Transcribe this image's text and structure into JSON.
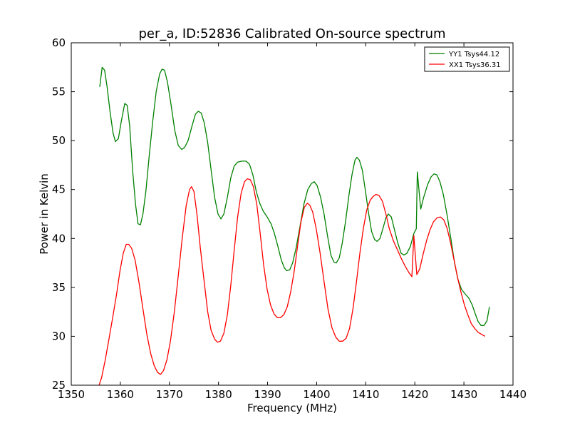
{
  "chart_data": {
    "type": "line",
    "title": "per_a, ID:52836 Calibrated On-source spectrum",
    "xlabel": "Frequency (MHz)",
    "ylabel": "Power in Kelvin",
    "xlim": [
      1350,
      1440
    ],
    "ylim": [
      25,
      60
    ],
    "xticks": [
      "1350",
      "1360",
      "1370",
      "1380",
      "1390",
      "1400",
      "1410",
      "1420",
      "1430",
      "1440"
    ],
    "yticks": [
      "25",
      "30",
      "35",
      "40",
      "45",
      "50",
      "55",
      "60"
    ],
    "grid": false,
    "legend_position": "top-right",
    "series": [
      {
        "name": "YY1 Tsys44.12",
        "color": "#008000",
        "points": [
          [
            1355.8,
            55.5
          ],
          [
            1356.3,
            57.5
          ],
          [
            1356.8,
            57.2
          ],
          [
            1357.3,
            55.5
          ],
          [
            1357.9,
            53.0
          ],
          [
            1358.5,
            50.8
          ],
          [
            1359.0,
            49.9
          ],
          [
            1359.6,
            50.2
          ],
          [
            1360.2,
            52.0
          ],
          [
            1360.9,
            53.8
          ],
          [
            1361.4,
            53.6
          ],
          [
            1361.9,
            51.5
          ],
          [
            1362.5,
            47.0
          ],
          [
            1363.1,
            43.5
          ],
          [
            1363.6,
            41.5
          ],
          [
            1364.1,
            41.4
          ],
          [
            1364.6,
            42.5
          ],
          [
            1365.2,
            44.8
          ],
          [
            1365.9,
            48.5
          ],
          [
            1366.6,
            52.0
          ],
          [
            1367.3,
            55.0
          ],
          [
            1368.0,
            56.8
          ],
          [
            1368.5,
            57.3
          ],
          [
            1369.0,
            57.2
          ],
          [
            1369.6,
            56.0
          ],
          [
            1370.3,
            53.8
          ],
          [
            1371.1,
            51.0
          ],
          [
            1371.8,
            49.5
          ],
          [
            1372.5,
            49.1
          ],
          [
            1373.1,
            49.3
          ],
          [
            1373.8,
            50.0
          ],
          [
            1374.6,
            51.5
          ],
          [
            1375.3,
            52.7
          ],
          [
            1375.9,
            53.0
          ],
          [
            1376.5,
            52.8
          ],
          [
            1377.1,
            51.8
          ],
          [
            1377.8,
            49.8
          ],
          [
            1378.5,
            47.0
          ],
          [
            1379.2,
            44.2
          ],
          [
            1379.9,
            42.5
          ],
          [
            1380.5,
            42.0
          ],
          [
            1381.1,
            42.5
          ],
          [
            1381.8,
            44.2
          ],
          [
            1382.5,
            46.2
          ],
          [
            1383.2,
            47.4
          ],
          [
            1383.9,
            47.8
          ],
          [
            1384.8,
            47.9
          ],
          [
            1385.6,
            47.9
          ],
          [
            1386.3,
            47.6
          ],
          [
            1387.0,
            46.5
          ],
          [
            1387.7,
            44.8
          ],
          [
            1388.4,
            43.6
          ],
          [
            1389.1,
            42.8
          ],
          [
            1389.9,
            42.2
          ],
          [
            1390.7,
            41.5
          ],
          [
            1391.4,
            40.5
          ],
          [
            1392.1,
            39.2
          ],
          [
            1392.8,
            37.8
          ],
          [
            1393.4,
            37.0
          ],
          [
            1393.9,
            36.7
          ],
          [
            1394.5,
            36.8
          ],
          [
            1395.1,
            37.5
          ],
          [
            1395.8,
            39.0
          ],
          [
            1396.6,
            41.2
          ],
          [
            1397.4,
            43.5
          ],
          [
            1398.2,
            45.0
          ],
          [
            1398.9,
            45.6
          ],
          [
            1399.5,
            45.8
          ],
          [
            1400.1,
            45.4
          ],
          [
            1400.8,
            44.2
          ],
          [
            1401.5,
            42.5
          ],
          [
            1402.2,
            40.3
          ],
          [
            1402.9,
            38.3
          ],
          [
            1403.5,
            37.6
          ],
          [
            1404.0,
            37.5
          ],
          [
            1404.6,
            38.0
          ],
          [
            1405.2,
            39.5
          ],
          [
            1405.9,
            41.8
          ],
          [
            1406.6,
            44.5
          ],
          [
            1407.2,
            46.5
          ],
          [
            1407.8,
            48.0
          ],
          [
            1408.2,
            48.3
          ],
          [
            1408.7,
            48.0
          ],
          [
            1409.3,
            47.0
          ],
          [
            1409.9,
            45.0
          ],
          [
            1410.6,
            42.5
          ],
          [
            1411.2,
            40.7
          ],
          [
            1411.8,
            39.9
          ],
          [
            1412.3,
            39.7
          ],
          [
            1412.9,
            40.0
          ],
          [
            1413.5,
            41.0
          ],
          [
            1414.1,
            42.1
          ],
          [
            1414.6,
            42.5
          ],
          [
            1415.2,
            42.2
          ],
          [
            1415.8,
            41.0
          ],
          [
            1416.5,
            39.6
          ],
          [
            1417.2,
            38.5
          ],
          [
            1417.8,
            38.3
          ],
          [
            1418.4,
            38.5
          ],
          [
            1419.1,
            39.2
          ],
          [
            1419.8,
            40.5
          ],
          [
            1420.3,
            41.0
          ],
          [
            1420.5,
            46.8
          ],
          [
            1421.2,
            43.0
          ],
          [
            1421.8,
            44.2
          ],
          [
            1422.6,
            45.5
          ],
          [
            1423.3,
            46.3
          ],
          [
            1423.9,
            46.6
          ],
          [
            1424.5,
            46.5
          ],
          [
            1425.1,
            45.8
          ],
          [
            1425.8,
            44.5
          ],
          [
            1426.6,
            42.3
          ],
          [
            1427.4,
            39.8
          ],
          [
            1428.1,
            37.5
          ],
          [
            1428.8,
            35.8
          ],
          [
            1429.5,
            34.8
          ],
          [
            1430.3,
            34.3
          ],
          [
            1431.0,
            33.9
          ],
          [
            1431.7,
            33.2
          ],
          [
            1432.3,
            32.3
          ],
          [
            1432.9,
            31.5
          ],
          [
            1433.5,
            31.1
          ],
          [
            1434.1,
            31.1
          ],
          [
            1434.7,
            31.6
          ],
          [
            1435.2,
            33.0
          ]
        ]
      },
      {
        "name": "XX1 Tsys36.31",
        "color": "#ff0000",
        "points": [
          [
            1355.6,
            24.9
          ],
          [
            1356.2,
            25.8
          ],
          [
            1356.9,
            27.5
          ],
          [
            1357.6,
            29.5
          ],
          [
            1358.4,
            31.8
          ],
          [
            1359.2,
            34.2
          ],
          [
            1359.9,
            36.6
          ],
          [
            1360.6,
            38.5
          ],
          [
            1361.2,
            39.4
          ],
          [
            1361.7,
            39.4
          ],
          [
            1362.3,
            39.0
          ],
          [
            1363.0,
            37.8
          ],
          [
            1363.8,
            35.5
          ],
          [
            1364.6,
            32.8
          ],
          [
            1365.4,
            30.2
          ],
          [
            1366.2,
            28.2
          ],
          [
            1366.9,
            27.0
          ],
          [
            1367.6,
            26.3
          ],
          [
            1368.2,
            26.1
          ],
          [
            1368.8,
            26.5
          ],
          [
            1369.5,
            27.6
          ],
          [
            1370.2,
            29.5
          ],
          [
            1371.0,
            32.5
          ],
          [
            1371.8,
            36.2
          ],
          [
            1372.6,
            40.0
          ],
          [
            1373.4,
            43.3
          ],
          [
            1374.1,
            45.0
          ],
          [
            1374.5,
            45.3
          ],
          [
            1375.0,
            44.8
          ],
          [
            1375.6,
            42.5
          ],
          [
            1376.3,
            39.0
          ],
          [
            1377.1,
            35.5
          ],
          [
            1377.8,
            32.5
          ],
          [
            1378.5,
            30.6
          ],
          [
            1379.2,
            29.7
          ],
          [
            1379.8,
            29.4
          ],
          [
            1380.4,
            29.5
          ],
          [
            1381.1,
            30.3
          ],
          [
            1381.8,
            32.2
          ],
          [
            1382.5,
            35.2
          ],
          [
            1383.2,
            38.8
          ],
          [
            1383.9,
            42.2
          ],
          [
            1384.6,
            44.6
          ],
          [
            1385.3,
            45.8
          ],
          [
            1385.9,
            46.1
          ],
          [
            1386.5,
            46.0
          ],
          [
            1387.1,
            45.3
          ],
          [
            1387.8,
            43.5
          ],
          [
            1388.5,
            40.5
          ],
          [
            1389.2,
            37.3
          ],
          [
            1389.9,
            34.8
          ],
          [
            1390.6,
            33.2
          ],
          [
            1391.3,
            32.3
          ],
          [
            1392.0,
            31.9
          ],
          [
            1392.6,
            31.9
          ],
          [
            1393.3,
            32.2
          ],
          [
            1394.0,
            33.0
          ],
          [
            1394.7,
            34.5
          ],
          [
            1395.4,
            36.6
          ],
          [
            1396.1,
            39.2
          ],
          [
            1396.8,
            41.7
          ],
          [
            1397.5,
            43.2
          ],
          [
            1398.1,
            43.6
          ],
          [
            1398.6,
            43.4
          ],
          [
            1399.2,
            42.7
          ],
          [
            1399.9,
            41.0
          ],
          [
            1400.7,
            38.5
          ],
          [
            1401.5,
            35.6
          ],
          [
            1402.3,
            32.8
          ],
          [
            1403.1,
            30.9
          ],
          [
            1403.9,
            29.9
          ],
          [
            1404.6,
            29.5
          ],
          [
            1405.3,
            29.5
          ],
          [
            1406.0,
            29.8
          ],
          [
            1406.7,
            30.8
          ],
          [
            1407.4,
            32.8
          ],
          [
            1408.1,
            35.5
          ],
          [
            1408.8,
            38.5
          ],
          [
            1409.5,
            41.0
          ],
          [
            1410.2,
            42.9
          ],
          [
            1410.9,
            43.9
          ],
          [
            1411.5,
            44.3
          ],
          [
            1412.1,
            44.5
          ],
          [
            1412.7,
            44.4
          ],
          [
            1413.4,
            43.8
          ],
          [
            1414.1,
            42.5
          ],
          [
            1414.8,
            41.0
          ],
          [
            1415.6,
            39.8
          ],
          [
            1416.4,
            38.9
          ],
          [
            1417.2,
            38.0
          ],
          [
            1418.0,
            37.2
          ],
          [
            1418.8,
            36.5
          ],
          [
            1419.4,
            36.1
          ],
          [
            1419.8,
            40.3
          ],
          [
            1420.4,
            36.3
          ],
          [
            1421.0,
            36.9
          ],
          [
            1421.7,
            38.4
          ],
          [
            1422.4,
            39.8
          ],
          [
            1423.1,
            40.9
          ],
          [
            1423.8,
            41.7
          ],
          [
            1424.5,
            42.1
          ],
          [
            1425.2,
            42.2
          ],
          [
            1425.9,
            41.9
          ],
          [
            1426.6,
            41.0
          ],
          [
            1427.3,
            39.5
          ],
          [
            1428.0,
            37.8
          ],
          [
            1428.7,
            36.0
          ],
          [
            1429.4,
            34.5
          ],
          [
            1430.1,
            33.2
          ],
          [
            1430.8,
            32.2
          ],
          [
            1431.5,
            31.3
          ],
          [
            1432.2,
            30.8
          ],
          [
            1432.9,
            30.4
          ],
          [
            1433.6,
            30.2
          ],
          [
            1434.3,
            30.0
          ]
        ]
      }
    ]
  }
}
